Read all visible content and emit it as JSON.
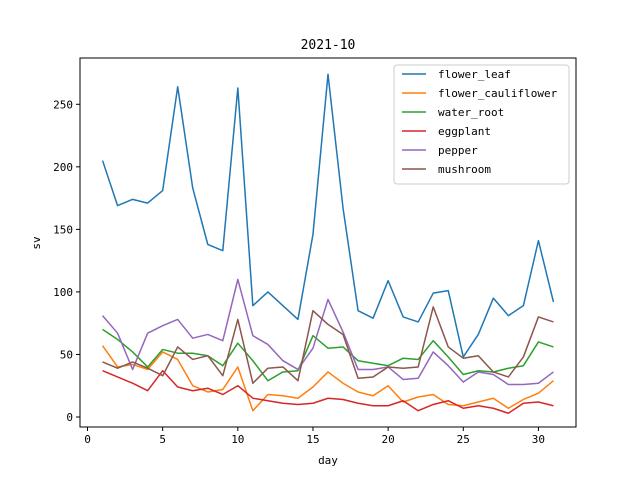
{
  "chart_data": {
    "type": "line",
    "title": "2021-10",
    "xlabel": "day",
    "ylabel": "sv",
    "xlim": [
      -0.5,
      32.5
    ],
    "ylim": [
      -8,
      287
    ],
    "xticks": [
      0,
      5,
      10,
      15,
      20,
      25,
      30
    ],
    "yticks": [
      0,
      50,
      100,
      150,
      200,
      250
    ],
    "grid": false,
    "legend_position": "top-right",
    "x": [
      1,
      2,
      3,
      4,
      5,
      6,
      7,
      8,
      9,
      10,
      11,
      12,
      13,
      14,
      15,
      16,
      17,
      18,
      19,
      20,
      21,
      22,
      23,
      24,
      25,
      26,
      27,
      28,
      29,
      30,
      31
    ],
    "series": [
      {
        "name": "flower_leaf",
        "color": "#1f77b4",
        "values": [
          205,
          169,
          174,
          171,
          181,
          264,
          183,
          138,
          133,
          263,
          89,
          100,
          89,
          78,
          146,
          274,
          167,
          85,
          79,
          109,
          80,
          76,
          99,
          101,
          48,
          66,
          95,
          81,
          89,
          141,
          92
        ]
      },
      {
        "name": "flower_cauliflower",
        "color": "#ff7f0e",
        "values": [
          57,
          40,
          42,
          38,
          52,
          46,
          25,
          20,
          22,
          40,
          5,
          18,
          17,
          15,
          24,
          36,
          27,
          20,
          17,
          25,
          12,
          16,
          18,
          10,
          9,
          12,
          15,
          7,
          14,
          19,
          29
        ]
      },
      {
        "name": "water_root",
        "color": "#2ca02c",
        "values": [
          70,
          62,
          52,
          40,
          54,
          51,
          51,
          49,
          41,
          59,
          45,
          29,
          36,
          37,
          65,
          55,
          56,
          45,
          43,
          41,
          47,
          46,
          61,
          48,
          34,
          37,
          36,
          39,
          41,
          60,
          56
        ]
      },
      {
        "name": "eggplant",
        "color": "#d62728",
        "values": [
          37,
          32,
          27,
          21,
          37,
          24,
          21,
          23,
          18,
          25,
          15,
          13,
          11,
          10,
          11,
          15,
          14,
          11,
          9,
          9,
          13,
          5,
          10,
          13,
          7,
          9,
          7,
          3,
          11,
          12,
          9
        ]
      },
      {
        "name": "pepper",
        "color": "#9467bd",
        "values": [
          81,
          67,
          38,
          67,
          73,
          78,
          63,
          66,
          61,
          110,
          65,
          58,
          45,
          38,
          55,
          94,
          68,
          38,
          38,
          40,
          30,
          31,
          52,
          41,
          28,
          36,
          34,
          26,
          26,
          27,
          36
        ]
      },
      {
        "name": "mushroom",
        "color": "#8c564b",
        "values": [
          44,
          39,
          44,
          39,
          33,
          56,
          46,
          49,
          33,
          78,
          27,
          39,
          40,
          29,
          85,
          74,
          66,
          31,
          32,
          40,
          39,
          40,
          88,
          56,
          47,
          49,
          36,
          32,
          48,
          80,
          76
        ]
      }
    ]
  }
}
